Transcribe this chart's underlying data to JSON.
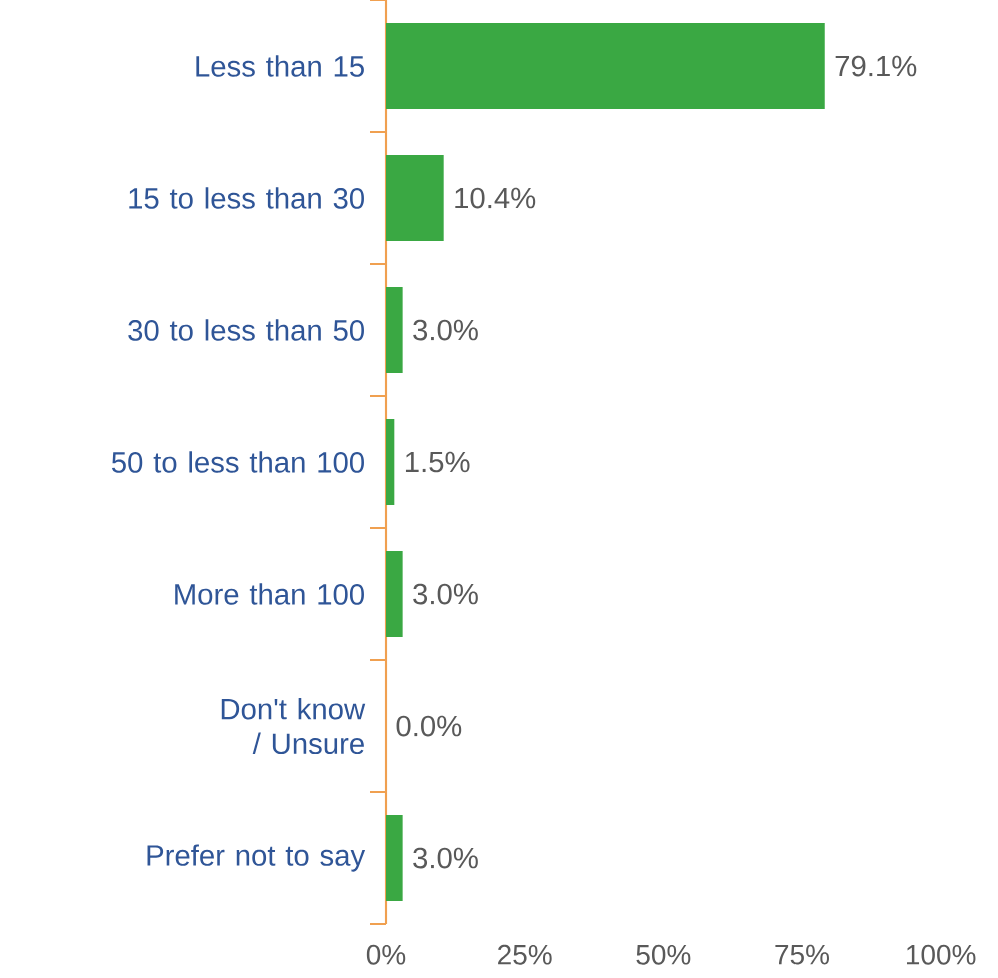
{
  "chart_data": {
    "type": "bar",
    "orientation": "horizontal",
    "categories": [
      "Less than 15",
      "15 to less than 30",
      "30 to less than 50",
      "50 to less than 100",
      "More than 100",
      "Don't know / Unsure",
      "Prefer not to say"
    ],
    "values": [
      79.1,
      10.4,
      3.0,
      1.5,
      3.0,
      0.0,
      3.0
    ],
    "value_labels": [
      "79.1%",
      "10.4%",
      "3.0%",
      "1.5%",
      "3.0%",
      "0.0%",
      "3.0%"
    ],
    "color": "#3aa843",
    "xlim": [
      0,
      100
    ],
    "xticks": [
      {
        "value": 0,
        "label": "0%"
      },
      {
        "value": 25,
        "label": "25%"
      },
      {
        "value": 50,
        "label": "50%"
      },
      {
        "value": 75,
        "label": "75%"
      },
      {
        "value": 100,
        "label": "100%"
      }
    ]
  }
}
